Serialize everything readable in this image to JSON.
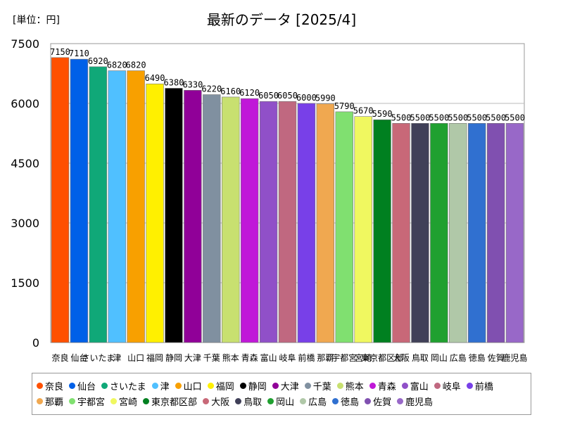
{
  "unit_label": "[単位：円]",
  "chart_data": {
    "type": "bar",
    "title": "最新のデータ [2025/4]",
    "xlabel": "",
    "ylabel": "",
    "ylim": [
      0,
      7500
    ],
    "yticks": [
      0,
      1500,
      3000,
      4500,
      6000,
      7500
    ],
    "grid": true,
    "legend_position": "bottom",
    "categories": [
      "奈良",
      "仙台",
      "さいたま",
      "津",
      "山口",
      "福岡",
      "静岡",
      "大津",
      "千葉",
      "熊本",
      "青森",
      "富山",
      "岐阜",
      "前橋",
      "那覇",
      "宇都宮",
      "宮崎",
      "東京都区部",
      "大阪",
      "鳥取",
      "岡山",
      "広島",
      "徳島",
      "佐賀",
      "鹿児島"
    ],
    "values": [
      7150,
      7110,
      6920,
      6820,
      6820,
      6490,
      6380,
      6330,
      6220,
      6160,
      6120,
      6050,
      6050,
      6000,
      5990,
      5790,
      5670,
      5590,
      5500,
      5500,
      5500,
      5500,
      5500,
      5500,
      5500
    ],
    "data_labels": [
      "7150",
      "7110",
      "6920",
      "6820",
      "6820",
      "6490",
      "6380",
      "6330",
      "6220",
      "6160",
      "6120",
      "6050",
      "6050",
      "6000",
      "5990",
      "5790",
      "5670",
      "5590",
      "5500",
      "5500",
      "5500",
      "5500",
      "5500",
      "5500",
      "5500"
    ],
    "colors": [
      "#FF5000",
      "#0060E8",
      "#10A878",
      "#50C0FF",
      "#F8A000",
      "#FFF000",
      "#000000",
      "#900098",
      "#8090A0",
      "#C8E070",
      "#C018D8",
      "#9050C8",
      "#C06880",
      "#7840E8",
      "#F0A850",
      "#80E070",
      "#F0F860",
      "#008020",
      "#C86878",
      "#404058",
      "#20A030",
      "#B0C8A8",
      "#3070D0",
      "#8050B0",
      "#9868C8"
    ]
  }
}
